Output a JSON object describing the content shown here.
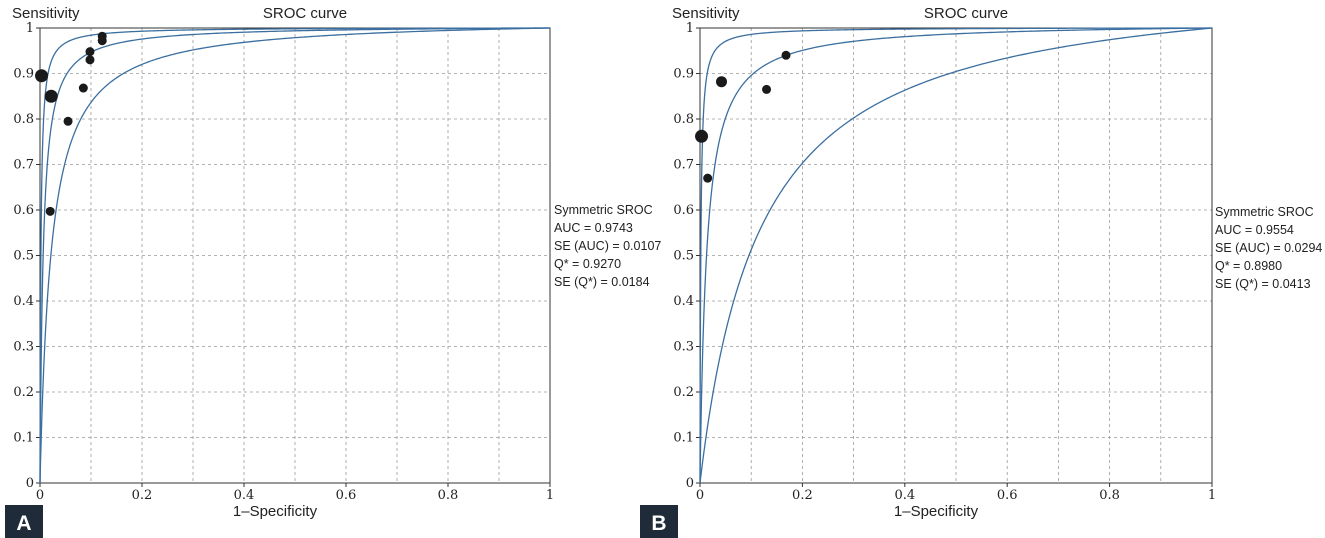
{
  "chart_data": [
    {
      "type": "scatter",
      "panel": "A",
      "title": "SROC curve",
      "ylabel": "Sensitivity",
      "xlabel": "1–Specificity",
      "xlim": [
        0,
        1
      ],
      "ylim": [
        0,
        1
      ],
      "grid": true,
      "xticks": [
        "0",
        "0.2",
        "0.4",
        "0.6",
        "0.8",
        "1"
      ],
      "yticks": [
        "0",
        "0.1",
        "0.2",
        "0.3",
        "0.4",
        "0.5",
        "0.6",
        "0.7",
        "0.8",
        "0.9",
        "1"
      ],
      "curve_auc": 0.9743,
      "stats": [
        "Symmetric SROC",
        "AUC = 0.9743",
        "SE (AUC) = 0.0107",
        "Q* = 0.9270",
        "SE (Q*) = 0.0184"
      ],
      "points": [
        {
          "x": 0.003,
          "y": 0.895,
          "size": "large"
        },
        {
          "x": 0.022,
          "y": 0.85,
          "size": "large"
        },
        {
          "x": 0.055,
          "y": 0.795,
          "size": "small"
        },
        {
          "x": 0.085,
          "y": 0.868,
          "size": "small"
        },
        {
          "x": 0.098,
          "y": 0.948,
          "size": "small"
        },
        {
          "x": 0.098,
          "y": 0.93,
          "size": "small"
        },
        {
          "x": 0.122,
          "y": 0.982,
          "size": "small"
        },
        {
          "x": 0.122,
          "y": 0.972,
          "size": "small"
        },
        {
          "x": 0.02,
          "y": 0.597,
          "size": "small"
        }
      ]
    },
    {
      "type": "scatter",
      "panel": "B",
      "title": "SROC curve",
      "ylabel": "Sensitivity",
      "xlabel": "1–Specificity",
      "xlim": [
        0,
        1
      ],
      "ylim": [
        0,
        1
      ],
      "grid": true,
      "xticks": [
        "0",
        "0.2",
        "0.4",
        "0.6",
        "0.8",
        "1"
      ],
      "yticks": [
        "0",
        "0.1",
        "0.2",
        "0.3",
        "0.4",
        "0.5",
        "0.6",
        "0.7",
        "0.8",
        "0.9",
        "1"
      ],
      "curve_auc": 0.9554,
      "stats": [
        "Symmetric SROC",
        "AUC = 0.9554",
        "SE (AUC) = 0.0294",
        "Q* = 0.8980",
        "SE (Q*) = 0.0413"
      ],
      "points": [
        {
          "x": 0.003,
          "y": 0.762,
          "size": "large"
        },
        {
          "x": 0.042,
          "y": 0.882,
          "size": "medium"
        },
        {
          "x": 0.015,
          "y": 0.67,
          "size": "small"
        },
        {
          "x": 0.13,
          "y": 0.865,
          "size": "small"
        },
        {
          "x": 0.168,
          "y": 0.94,
          "size": "small"
        }
      ]
    }
  ],
  "colors": {
    "curve": "#3b6fa0",
    "point": "#1a1a1a",
    "grid": "#9a9a9a",
    "panel_label_bg": "#1f2b38"
  }
}
